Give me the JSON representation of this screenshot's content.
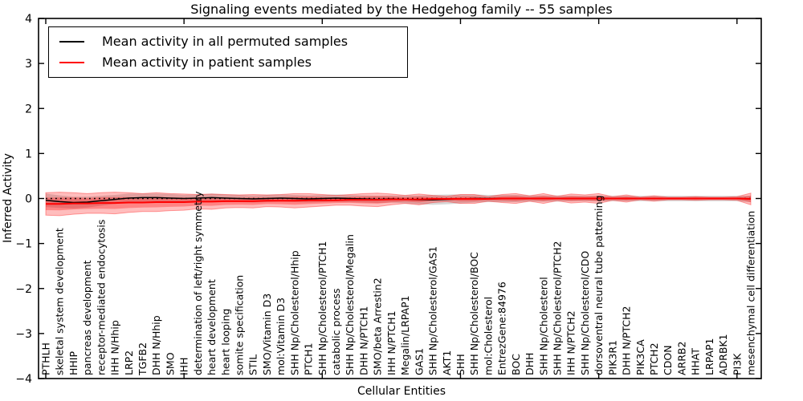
{
  "title": "Signaling events mediated by the Hedgehog family -- 55 samples",
  "axes": {
    "x_label": "Cellular Entities",
    "y_label": "Inferred Activity"
  },
  "legend": {
    "items": [
      {
        "label": "Mean activity in all permuted samples",
        "color": "#000000"
      },
      {
        "label": "Mean activity in patient samples",
        "color": "#ff0000"
      }
    ]
  },
  "chart_data": {
    "type": "line",
    "title": "Signaling events mediated by the Hedgehog family -- 55 samples",
    "xlabel": "Cellular Entities",
    "ylabel": "Inferred Activity",
    "ylim": [
      -4,
      4
    ],
    "yticks": [
      -4,
      -3,
      -2,
      -1,
      0,
      1,
      2,
      3,
      4
    ],
    "ytick_labels": [
      "−4",
      "−3",
      "−2",
      "−1",
      "0",
      "1",
      "2",
      "3",
      "4"
    ],
    "x_major_tick_every": 10,
    "grid": false,
    "legend_position": "upper left",
    "zero_line": {
      "value": 0,
      "style": "dotted",
      "color": "#000000"
    },
    "categories": [
      "PTHLH",
      "skeletal system development",
      "HHIP",
      "pancreas development",
      "receptor-mediated endocytosis",
      "IHH N/Hhip",
      "LRP2",
      "TGFB2",
      "DHH N/Hhip",
      "SMO",
      "IHH",
      "determination of left/right symmetry",
      "heart development",
      "heart looping",
      "somite specification",
      "STIL",
      "SMO/Vitamin D3",
      "mol:Vitamin D3",
      "SHH Np/Cholesterol/Hhip",
      "PTCH1",
      "SHH Np/Cholesterol/PTCH1",
      "catabolic process",
      "SHH Np/Cholesterol/Megalin",
      "DHH N/PTCH1",
      "SMO/beta Arrestin2",
      "IHH N/PTCH1",
      "Megalin/LRPAP1",
      "GAS1",
      "SHH Np/Cholesterol/GAS1",
      "AKT1",
      "SHH",
      "SHH Np/Cholesterol/BOC",
      "mol:Cholesterol",
      "EntrezGene:84976",
      "BOC",
      "DHH",
      "SHH Np/Cholesterol",
      "SHH Np/Cholesterol/PTCH2",
      "IHH N/PTCH2",
      "SHH Np/Cholesterol/CDO",
      "dorsoventral neural tube patterning",
      "PIK3R1",
      "DHH N/PTCH2",
      "PIK3CA",
      "PTCH2",
      "CDON",
      "ARRB2",
      "HHAT",
      "LRPAP1",
      "ADRBK1",
      "PI3K",
      "mesenchymal cell differentiation"
    ],
    "series": [
      {
        "name": "Mean activity in all permuted samples",
        "color": "#000000",
        "values": [
          -0.04,
          -0.07,
          -0.09,
          -0.08,
          -0.05,
          -0.02,
          0.01,
          0.02,
          0.02,
          0.01,
          0.0,
          0.01,
          0.02,
          0.01,
          0.0,
          -0.01,
          0.0,
          0.01,
          0.0,
          -0.01,
          0.0,
          0.01,
          0.0,
          -0.01,
          -0.02,
          -0.01,
          -0.02,
          -0.03,
          -0.03,
          -0.02,
          -0.01,
          0.0,
          0.0,
          0.0,
          0.0,
          0.0,
          0.0,
          0.0,
          0.0,
          0.0,
          0.0,
          0.0,
          0.0,
          0.0,
          0.0,
          0.0,
          0.0,
          0.0,
          0.0,
          0.0,
          0.0,
          -0.01
        ],
        "band": {
          "color": "#b0b0b0",
          "halfwidths": [
            0.15,
            0.14,
            0.13,
            0.12,
            0.11,
            0.1,
            0.1,
            0.09,
            0.09,
            0.09,
            0.08,
            0.08,
            0.09,
            0.08,
            0.08,
            0.08,
            0.08,
            0.08,
            0.08,
            0.08,
            0.08,
            0.08,
            0.08,
            0.08,
            0.08,
            0.08,
            0.09,
            0.1,
            0.11,
            0.11,
            0.1,
            0.09,
            0.08,
            0.08,
            0.08,
            0.07,
            0.07,
            0.07,
            0.06,
            0.06,
            0.06,
            0.06,
            0.06,
            0.06,
            0.06,
            0.06,
            0.06,
            0.06,
            0.06,
            0.06,
            0.06,
            0.07
          ]
        }
      },
      {
        "name": "Mean activity in patient samples",
        "color": "#ff0000",
        "values": [
          -0.12,
          -0.12,
          -0.11,
          -0.11,
          -0.1,
          -0.1,
          -0.09,
          -0.09,
          -0.08,
          -0.08,
          -0.08,
          -0.07,
          -0.07,
          -0.06,
          -0.06,
          -0.06,
          -0.05,
          -0.05,
          -0.05,
          -0.04,
          -0.04,
          -0.04,
          -0.03,
          -0.03,
          -0.03,
          -0.02,
          -0.02,
          -0.02,
          -0.01,
          -0.01,
          -0.01,
          -0.01,
          -0.01,
          0.0,
          0.0,
          0.0,
          0.0,
          0.0,
          0.0,
          0.0,
          0.0,
          0.0,
          0.0,
          0.0,
          0.0,
          0.0,
          0.0,
          0.0,
          0.0,
          0.0,
          0.0,
          -0.01
        ],
        "band": {
          "color": "#ff0000",
          "inner_factor": 0.55,
          "halfwidths": [
            0.25,
            0.26,
            0.24,
            0.22,
            0.23,
            0.24,
            0.22,
            0.2,
            0.21,
            0.19,
            0.18,
            0.16,
            0.17,
            0.15,
            0.14,
            0.15,
            0.13,
            0.14,
            0.16,
            0.15,
            0.13,
            0.11,
            0.12,
            0.14,
            0.15,
            0.12,
            0.09,
            0.12,
            0.08,
            0.06,
            0.1,
            0.1,
            0.05,
            0.09,
            0.11,
            0.06,
            0.11,
            0.05,
            0.1,
            0.08,
            0.11,
            0.04,
            0.08,
            0.03,
            0.06,
            0.03,
            0.03,
            0.04,
            0.03,
            0.03,
            0.04,
            0.13
          ]
        }
      }
    ]
  }
}
